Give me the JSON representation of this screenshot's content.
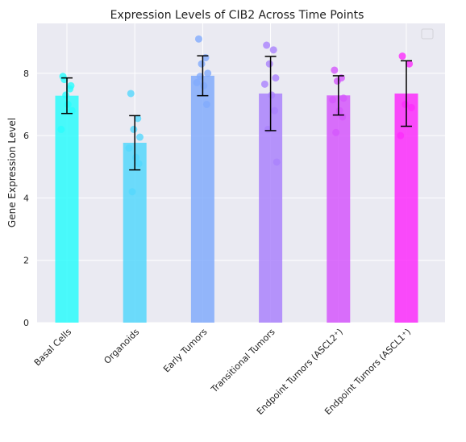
{
  "chart_data": {
    "type": "bar",
    "title": "Expression Levels of CIB2 Across Time Points",
    "xlabel": "",
    "ylabel": "Gene Expression Level",
    "ylim": [
      0,
      9.6
    ],
    "yticks": [
      0,
      2,
      4,
      6,
      8
    ],
    "grid": true,
    "legend": "top-right (empty)",
    "categories": [
      "Basal Cells",
      "Organoids",
      "Early Tumors",
      "Transitional Tumors",
      "Endpoint Tumors (ASCL2⁺)",
      "Endpoint Tumors (ASCL1⁺)"
    ],
    "values": [
      7.28,
      5.77,
      7.92,
      7.35,
      7.29,
      7.35
    ],
    "error": [
      0.57,
      0.87,
      0.64,
      1.19,
      0.63,
      1.05
    ],
    "colors": [
      "#2bfcfc",
      "#55d7fc",
      "#82abfc",
      "#aa82fc",
      "#d557fc",
      "#fc2dfc"
    ],
    "points": [
      [
        7.9,
        7.5,
        7.3,
        6.8,
        6.2,
        7.0,
        7.6,
        7.8
      ],
      [
        7.35,
        6.55,
        6.2,
        5.95,
        5.6,
        5.3,
        5.1,
        4.2
      ],
      [
        9.1,
        8.5,
        8.3,
        8.0,
        7.7,
        7.6,
        7.0,
        7.9
      ],
      [
        8.9,
        8.75,
        8.3,
        7.85,
        7.65,
        7.3,
        6.8,
        6.2,
        5.15
      ],
      [
        8.1,
        7.85,
        7.75,
        7.2,
        7.15,
        6.8,
        6.6,
        6.1
      ],
      [
        8.55,
        8.3,
        7.0,
        6.9,
        6.0
      ]
    ]
  },
  "axis_colors": {
    "background": "#eaeaf2",
    "grid": "#ffffff",
    "error": "#000000"
  }
}
